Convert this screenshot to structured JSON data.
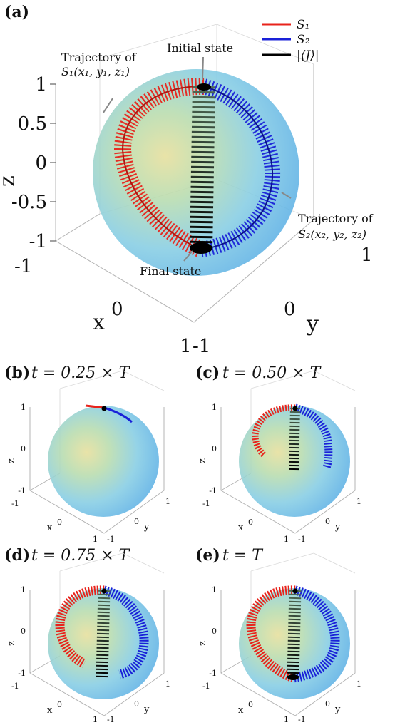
{
  "panels": [
    {
      "id": "a",
      "label": "(a)",
      "time": ""
    },
    {
      "id": "b",
      "label": "(b)",
      "time": "t = 0.25 × T"
    },
    {
      "id": "c",
      "label": "(c)",
      "time": "t = 0.50 × T"
    },
    {
      "id": "d",
      "label": "(d)",
      "time": "t = 0.75 × T"
    },
    {
      "id": "e",
      "label": "(e)",
      "time": "t = T"
    }
  ],
  "legend": [
    {
      "label": "S₁",
      "color": "#e8231b"
    },
    {
      "label": "S₂",
      "color": "#1a21d8"
    },
    {
      "label": "|⟨J⟩|",
      "color": "#000000"
    }
  ],
  "annotations": {
    "initial": "Initial state",
    "final": "Final state",
    "traj1_line1": "Trajectory of",
    "traj1_line2": "S₁(x₁, y₁, z₁)",
    "traj2_line1": "Trajectory of",
    "traj2_line2": "S₂(x₂, y₂, z₂)"
  },
  "axes": {
    "x_label": "x",
    "y_label": "y",
    "z_label": "z",
    "z_ticks": [
      "1",
      "0.5",
      "0",
      "-0.5",
      "-1"
    ],
    "z_ticks_small": [
      "1",
      "0",
      "-1"
    ],
    "x_ticks": [
      "-1",
      "0",
      "1"
    ],
    "y_ticks": [
      "-1",
      "0",
      "1"
    ]
  },
  "chart_data": {
    "type": "3d-trajectory",
    "sphere": "Bloch sphere, radius 1",
    "series": [
      {
        "name": "S₁",
        "color": "#e8231b"
      },
      {
        "name": "S₂",
        "color": "#1a21d8"
      },
      {
        "name": "|⟨J⟩|",
        "color": "#000000"
      }
    ],
    "xlim": [
      -1,
      1
    ],
    "ylim": [
      -1,
      1
    ],
    "zlim": [
      -1,
      1
    ],
    "snapshots": [
      0.25,
      0.5,
      0.75,
      1.0
    ]
  }
}
